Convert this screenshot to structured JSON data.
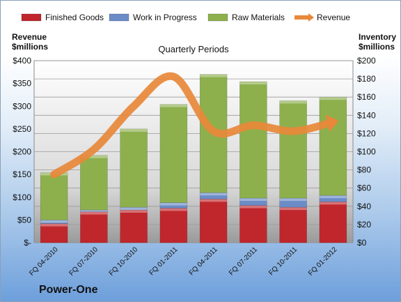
{
  "company": "Power-One",
  "chart_data": {
    "type": "bar",
    "title": "Quarterly Periods",
    "left_axis_label": [
      "Revenue",
      "$millions"
    ],
    "right_axis_label": [
      "Inventory",
      "$millions"
    ],
    "categories": [
      "FQ 04-2010",
      "FQ 07-2010",
      "FQ 10-2010",
      "FQ 01-2011",
      "FQ 04-2011",
      "FQ 07-2011",
      "FQ 10-2011",
      "FQ 01-2012"
    ],
    "left_ylim": [
      0,
      400
    ],
    "left_ticks": [
      "$-",
      "$50",
      "$100",
      "$150",
      "$200",
      "$250",
      "$300",
      "$350",
      "$400"
    ],
    "right_ylim": [
      0,
      200
    ],
    "right_ticks": [
      "$0",
      "$20",
      "$40",
      "$60",
      "$80",
      "$100",
      "$120",
      "$140",
      "$160",
      "$180",
      "$200"
    ],
    "grid": true,
    "legend_position": "top",
    "series": [
      {
        "name": "Finished Goods",
        "type": "stacked-bar",
        "axis": "right",
        "color": "#c0272d",
        "values": [
          21,
          34,
          36,
          38,
          48,
          41,
          39,
          45
        ]
      },
      {
        "name": "Work in Progress",
        "type": "stacked-bar",
        "axis": "right",
        "color": "#6b8cc7",
        "values": [
          4,
          2,
          3,
          6,
          7,
          8,
          10,
          7
        ]
      },
      {
        "name": "Raw Materials",
        "type": "stacked-bar",
        "axis": "right",
        "color": "#8db04d",
        "values": [
          52,
          60,
          86,
          108,
          130,
          128,
          107,
          108
        ]
      },
      {
        "name": "Revenue",
        "type": "line",
        "axis": "left",
        "color": "#e8883a",
        "values": [
          150,
          205,
          300,
          365,
          245,
          258,
          245,
          265
        ]
      }
    ]
  }
}
